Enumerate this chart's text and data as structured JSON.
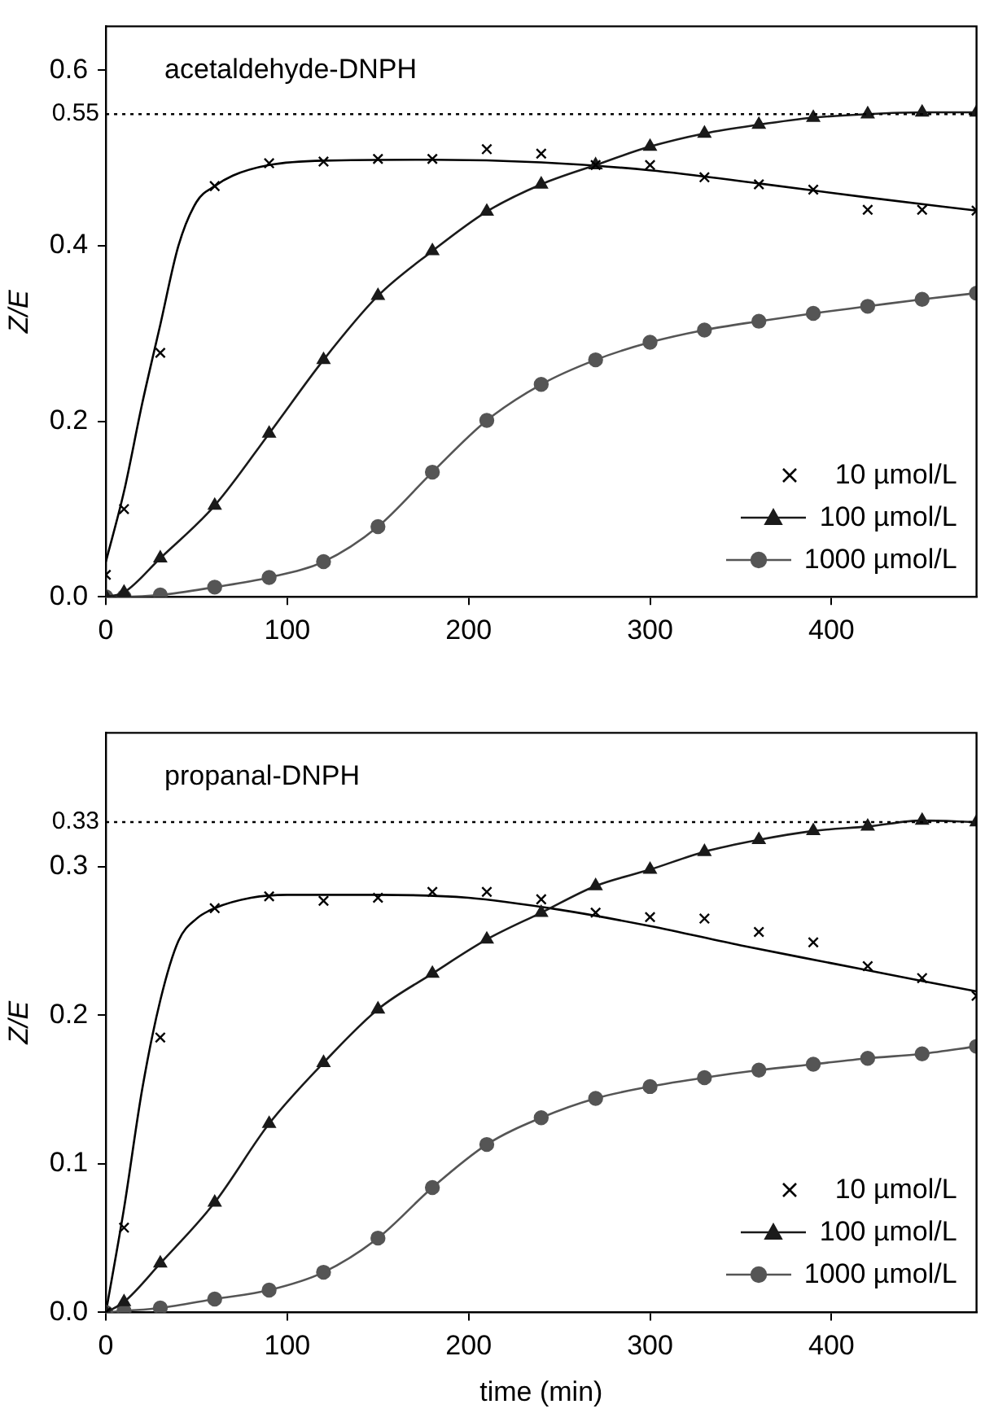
{
  "chart_data": [
    {
      "type": "line",
      "title": "acetaldehyde-DNPH",
      "ylabel": "Z/E",
      "xlim": [
        0,
        480
      ],
      "xticks": [
        0,
        100,
        200,
        300,
        400
      ],
      "ylim": [
        0,
        0.65
      ],
      "yticks": [
        {
          "value": 0,
          "label": "0.0"
        },
        0.2,
        0.4,
        0.6
      ],
      "grid": false,
      "legend": "bottom right",
      "x": [
        0,
        10,
        30,
        60,
        90,
        120,
        150,
        180,
        210,
        240,
        270,
        300,
        330,
        360,
        390,
        420,
        450,
        480
      ],
      "ref_lines": [
        {
          "axis": "y",
          "value": 0.55,
          "label": "0.55",
          "line_style": "dotted",
          "color": "#000000"
        }
      ],
      "series": [
        {
          "name": "10 µmol/L",
          "type": "scatter",
          "marker": "cross",
          "color": "#000000",
          "values": [
            0.025,
            0.1,
            0.278,
            0.468,
            0.494,
            0.496,
            0.499,
            0.499,
            0.51,
            0.505,
            0.492,
            0.492,
            0.478,
            0.47,
            0.464,
            0.441,
            0.441,
            0.44
          ]
        },
        {
          "name": "100 µmol/L",
          "marker": "triangle",
          "color": "#1a1a1a",
          "values": [
            0,
            0.005,
            0.044,
            0.104,
            0.186,
            0.27,
            0.343,
            0.394,
            0.439,
            0.47,
            0.492,
            0.513,
            0.528,
            0.538,
            0.546,
            0.55,
            0.552,
            0.552
          ]
        },
        {
          "name": "1000 µmol/L",
          "marker": "circle",
          "color": "#555555",
          "values": [
            0,
            0,
            0.002,
            0.011,
            0.022,
            0.04,
            0.08,
            0.142,
            0.201,
            0.242,
            0.27,
            0.29,
            0.304,
            0.314,
            0.323,
            0.331,
            0.339,
            0.346
          ]
        },
        {
          "marker": "none",
          "color": "#000000",
          "x": [
            0,
            10,
            20,
            30,
            40,
            50,
            60,
            70,
            90,
            120,
            180,
            240,
            300,
            360,
            420,
            480
          ],
          "values": [
            0.04,
            0.12,
            0.22,
            0.31,
            0.4,
            0.45,
            0.468,
            0.48,
            0.492,
            0.497,
            0.498,
            0.495,
            0.486,
            0.471,
            0.455,
            0.44
          ]
        }
      ]
    },
    {
      "type": "line",
      "title": "propanal-DNPH",
      "xlabel": "time (min)",
      "ylabel": "Z/E",
      "xlim": [
        0,
        480
      ],
      "xticks": [
        0,
        100,
        200,
        300,
        400
      ],
      "ylim": [
        0,
        0.39
      ],
      "yticks": [
        {
          "value": 0,
          "label": "0.0"
        },
        0.1,
        0.2,
        0.3
      ],
      "grid": false,
      "legend": "bottom right",
      "x": [
        0,
        10,
        30,
        60,
        90,
        120,
        150,
        180,
        210,
        240,
        270,
        300,
        330,
        360,
        390,
        420,
        450,
        480
      ],
      "ref_lines": [
        {
          "axis": "y",
          "value": 0.33,
          "label": "0.33",
          "line_style": "dotted",
          "color": "#000000"
        }
      ],
      "series": [
        {
          "name": "10 µmol/L",
          "type": "scatter",
          "marker": "cross",
          "color": "#000000",
          "values": [
            0,
            0.057,
            0.185,
            0.272,
            0.28,
            0.277,
            0.279,
            0.283,
            0.283,
            0.278,
            0.269,
            0.266,
            0.265,
            0.256,
            0.249,
            0.233,
            0.225,
            0.213
          ]
        },
        {
          "name": "100 µmol/L",
          "marker": "triangle",
          "color": "#1a1a1a",
          "values": [
            0,
            0.007,
            0.033,
            0.074,
            0.127,
            0.168,
            0.204,
            0.228,
            0.251,
            0.269,
            0.287,
            0.298,
            0.31,
            0.318,
            0.324,
            0.327,
            0.331,
            0.33
          ]
        },
        {
          "name": "1000 µmol/L",
          "marker": "circle",
          "color": "#555555",
          "values": [
            0,
            0.001,
            0.003,
            0.009,
            0.015,
            0.027,
            0.05,
            0.084,
            0.113,
            0.131,
            0.144,
            0.152,
            0.158,
            0.163,
            0.167,
            0.171,
            0.174,
            0.179
          ]
        },
        {
          "marker": "none",
          "color": "#000000",
          "x": [
            0,
            10,
            20,
            30,
            40,
            50,
            60,
            80,
            100,
            150,
            200,
            250,
            300,
            350,
            400,
            450,
            480
          ],
          "values": [
            0,
            0.07,
            0.15,
            0.21,
            0.25,
            0.265,
            0.272,
            0.279,
            0.281,
            0.281,
            0.279,
            0.271,
            0.26,
            0.247,
            0.235,
            0.223,
            0.216
          ]
        }
      ]
    }
  ]
}
